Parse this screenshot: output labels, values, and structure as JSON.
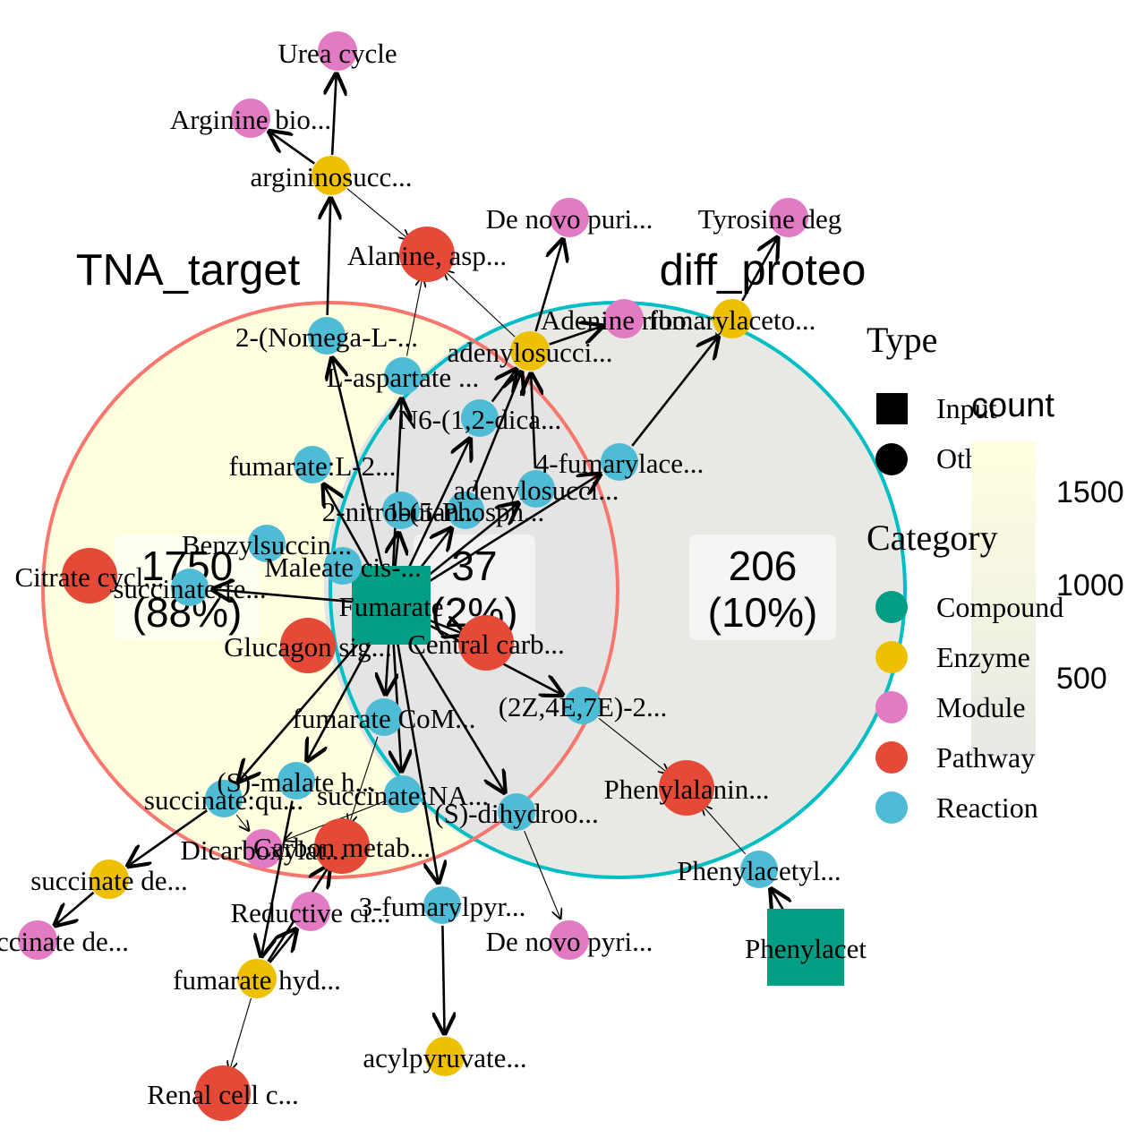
{
  "venn": {
    "sets": [
      {
        "name": "TNA_target",
        "fill": "#FFFFE0",
        "stroke": "#F8766D"
      },
      {
        "name": "diff_proteo",
        "fill": "#E8E8E4",
        "stroke": "#00BFC4"
      }
    ],
    "regions": [
      {
        "id": "only-tna",
        "count": "1750",
        "percent": "(88%)"
      },
      {
        "id": "overlap",
        "count": "37",
        "percent": "(2%)"
      },
      {
        "id": "only-diff",
        "count": "206",
        "percent": "(10%)"
      }
    ]
  },
  "network": {
    "nodes": [
      {
        "id": "fumarate",
        "label": "Fumarate",
        "category": "Compound",
        "type": "Input"
      },
      {
        "id": "phenylacet",
        "label": "Phenylacet",
        "category": "Compound",
        "type": "Input"
      },
      {
        "id": "urea",
        "label": "Urea cycle",
        "category": "Module",
        "type": "Others"
      },
      {
        "id": "argbio",
        "label": "Arginine bio...",
        "category": "Module",
        "type": "Others"
      },
      {
        "id": "argsucc",
        "label": "argininosucc...",
        "category": "Enzyme",
        "type": "Others"
      },
      {
        "id": "alanine",
        "label": "Alanine, asp...",
        "category": "Pathway",
        "type": "Others"
      },
      {
        "id": "denovopuri",
        "label": "De novo puri...",
        "category": "Module",
        "type": "Others"
      },
      {
        "id": "tyrosine",
        "label": "Tyrosine deg",
        "category": "Module",
        "type": "Others"
      },
      {
        "id": "adenine",
        "label": "Adenine ribo...",
        "category": "Module",
        "type": "Others"
      },
      {
        "id": "fumarylaceto",
        "label": "fumarylaceto...",
        "category": "Enzyme",
        "type": "Others"
      },
      {
        "id": "nomega",
        "label": "2-(Nomega-L-...",
        "category": "Reaction",
        "type": "Others"
      },
      {
        "id": "adenylosucc_e",
        "label": "adenylosucci...",
        "category": "Enzyme",
        "type": "Others"
      },
      {
        "id": "laspartate",
        "label": "L-aspartate ...",
        "category": "Reaction",
        "type": "Others"
      },
      {
        "id": "n6",
        "label": "N6-(1,2-dica...",
        "category": "Reaction",
        "type": "Others"
      },
      {
        "id": "fumaratel2",
        "label": "fumarate:L-2...",
        "category": "Reaction",
        "type": "Others"
      },
      {
        "id": "fumarylace_r",
        "label": "4-fumarylace...",
        "category": "Reaction",
        "type": "Others"
      },
      {
        "id": "adenylosucc_r",
        "label": "adenylosucci...",
        "category": "Reaction",
        "type": "Others"
      },
      {
        "id": "nitrobutan",
        "label": "2-nitrobutan...",
        "category": "Reaction",
        "type": "Others"
      },
      {
        "id": "phosph",
        "label": "1-(5-Phosph...",
        "category": "Reaction",
        "type": "Others"
      },
      {
        "id": "benzyl",
        "label": "Benzylsuccin...",
        "category": "Reaction",
        "type": "Others"
      },
      {
        "id": "maleate",
        "label": "Maleate cis-...",
        "category": "Reaction",
        "type": "Others"
      },
      {
        "id": "citrate",
        "label": "Citrate cycl...",
        "category": "Pathway",
        "type": "Others"
      },
      {
        "id": "succfe",
        "label": "succinate:fe...",
        "category": "Reaction",
        "type": "Others"
      },
      {
        "id": "glucagon",
        "label": "Glucagon sig...",
        "category": "Pathway",
        "type": "Others"
      },
      {
        "id": "central",
        "label": "Central carb...",
        "category": "Pathway",
        "type": "Others"
      },
      {
        "id": "z4e7e",
        "label": "(2Z,4E,7E)-2...",
        "category": "Reaction",
        "type": "Others"
      },
      {
        "id": "fumcom",
        "label": "fumarate CoM...",
        "category": "Reaction",
        "type": "Others"
      },
      {
        "id": "smalate",
        "label": "(S)-malate h...",
        "category": "Reaction",
        "type": "Others"
      },
      {
        "id": "phenylalanin",
        "label": "Phenylalanin...",
        "category": "Pathway",
        "type": "Others"
      },
      {
        "id": "succqu",
        "label": "succinate:qu...",
        "category": "Reaction",
        "type": "Others"
      },
      {
        "id": "succna",
        "label": "succinate:NA...",
        "category": "Reaction",
        "type": "Others"
      },
      {
        "id": "sdihydroo",
        "label": "(S)-dihydroo...",
        "category": "Reaction",
        "type": "Others"
      },
      {
        "id": "dicarbox",
        "label": "Dicarboxylat...",
        "category": "Module",
        "type": "Others"
      },
      {
        "id": "carbon",
        "label": "Carbon metab...",
        "category": "Pathway",
        "type": "Others"
      },
      {
        "id": "phenylacetyl",
        "label": "Phenylacetyl...",
        "category": "Reaction",
        "type": "Others"
      },
      {
        "id": "succde_e",
        "label": "succinate de...",
        "category": "Enzyme",
        "type": "Others"
      },
      {
        "id": "reductive",
        "label": "Reductive ci...",
        "category": "Module",
        "type": "Others"
      },
      {
        "id": "fumarylpyr",
        "label": "3-fumarylpyr...",
        "category": "Reaction",
        "type": "Others"
      },
      {
        "id": "denovopyri",
        "label": "De novo pyri...",
        "category": "Module",
        "type": "Others"
      },
      {
        "id": "succde_m",
        "label": "ccinate de...",
        "category": "Module",
        "type": "Others"
      },
      {
        "id": "fumhyd",
        "label": "fumarate hyd...",
        "category": "Enzyme",
        "type": "Others"
      },
      {
        "id": "acylpyr",
        "label": "acylpyruvate...",
        "category": "Enzyme",
        "type": "Others"
      },
      {
        "id": "renal",
        "label": "Renal cell c...",
        "category": "Pathway",
        "type": "Others"
      }
    ],
    "edges": [
      {
        "from": "argsucc",
        "to": "urea",
        "w": "thick"
      },
      {
        "from": "argsucc",
        "to": "argbio",
        "w": "thick"
      },
      {
        "from": "argsucc",
        "to": "alanine",
        "w": "thin"
      },
      {
        "from": "nomega",
        "to": "argsucc",
        "w": "thick"
      },
      {
        "from": "adenylosucc_e",
        "to": "denovopuri",
        "w": "thick"
      },
      {
        "from": "adenylosucc_e",
        "to": "adenine",
        "w": "thick"
      },
      {
        "from": "adenylosucc_e",
        "to": "alanine",
        "w": "thin"
      },
      {
        "from": "fumarylaceto",
        "to": "tyrosine",
        "w": "thick"
      },
      {
        "from": "fumarylace_r",
        "to": "fumarylaceto",
        "w": "thick"
      },
      {
        "from": "n6",
        "to": "adenylosucc_e",
        "w": "thick"
      },
      {
        "from": "adenylosucc_r",
        "to": "adenylosucc_e",
        "w": "thick"
      },
      {
        "from": "phosph",
        "to": "adenylosucc_e",
        "w": "thick"
      },
      {
        "from": "fumarate",
        "to": "nomega",
        "w": "thick"
      },
      {
        "from": "fumarate",
        "to": "laspartate",
        "w": "thick"
      },
      {
        "from": "fumarate",
        "to": "n6",
        "w": "thick"
      },
      {
        "from": "fumarate",
        "to": "adenylosucc_r",
        "w": "thick"
      },
      {
        "from": "fumarate",
        "to": "fumarylace_r",
        "w": "thick"
      },
      {
        "from": "fumarate",
        "to": "phosph",
        "w": "thick"
      },
      {
        "from": "fumarate",
        "to": "fumaratel2",
        "w": "thick"
      },
      {
        "from": "fumarate",
        "to": "nitrobutan",
        "w": "thick"
      },
      {
        "from": "fumarate",
        "to": "succfe",
        "w": "thick"
      },
      {
        "from": "fumarate",
        "to": "central",
        "w": "thick"
      },
      {
        "from": "fumarate",
        "to": "fumcom",
        "w": "thick"
      },
      {
        "from": "fumarate",
        "to": "smalate",
        "w": "thick"
      },
      {
        "from": "fumarate",
        "to": "succna",
        "w": "thick"
      },
      {
        "from": "fumarate",
        "to": "sdihydroo",
        "w": "thick"
      },
      {
        "from": "fumarate",
        "to": "fumarylpyr",
        "w": "thick"
      },
      {
        "from": "fumarate",
        "to": "z4e7e",
        "w": "thick"
      },
      {
        "from": "fumarate",
        "to": "succqu",
        "w": "thick"
      },
      {
        "from": "fumarate",
        "to": "maleate",
        "w": "thin"
      },
      {
        "from": "laspartate",
        "to": "alanine",
        "w": "thin"
      },
      {
        "from": "z4e7e",
        "to": "phenylalanin",
        "w": "thin"
      },
      {
        "from": "phenylacetyl",
        "to": "phenylalanin",
        "w": "thin"
      },
      {
        "from": "phenylacet",
        "to": "phenylacetyl",
        "w": "thick"
      },
      {
        "from": "succqu",
        "to": "succde_e",
        "w": "thick"
      },
      {
        "from": "succde_e",
        "to": "succde_m",
        "w": "thick"
      },
      {
        "from": "smalate",
        "to": "fumhyd",
        "w": "thick"
      },
      {
        "from": "fumhyd",
        "to": "carbon",
        "w": "thick"
      },
      {
        "from": "fumhyd",
        "to": "renal",
        "w": "thin"
      },
      {
        "from": "fumhyd",
        "to": "reductive",
        "w": "thick"
      },
      {
        "from": "fumarylpyr",
        "to": "acylpyr",
        "w": "thick"
      },
      {
        "from": "sdihydroo",
        "to": "denovopyri",
        "w": "thin"
      },
      {
        "from": "succna",
        "to": "dicarbox",
        "w": "thin"
      },
      {
        "from": "succqu",
        "to": "dicarbox",
        "w": "thin"
      },
      {
        "from": "fumcom",
        "to": "carbon",
        "w": "thin"
      }
    ]
  },
  "legend": {
    "type_title": "Type",
    "type_items": [
      {
        "label": "Input",
        "shape": "square"
      },
      {
        "label": "Others",
        "shape": "circle"
      }
    ],
    "category_title": "Category",
    "category_items": [
      {
        "label": "Compound",
        "color": "#009E84"
      },
      {
        "label": "Enzyme",
        "color": "#EEC000"
      },
      {
        "label": "Module",
        "color": "#E27AC4"
      },
      {
        "label": "Pathway",
        "color": "#E54A39"
      },
      {
        "label": "Reaction",
        "color": "#4FBCD6"
      }
    ],
    "count_title": "count",
    "count_ticks": [
      "1500",
      "1000",
      "500"
    ],
    "count_gradient": [
      "#FFFFE0",
      "#E8E8E4"
    ]
  }
}
